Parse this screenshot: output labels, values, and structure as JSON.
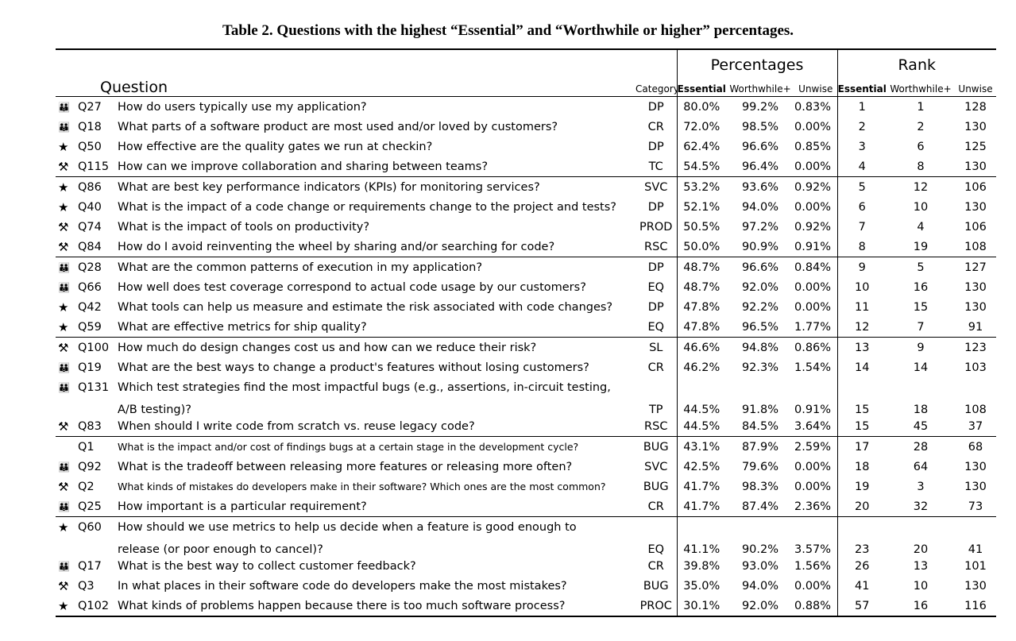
{
  "caption": "Table 2. Questions with the highest “Essential” and “Worthwhile or higher” percentages.",
  "headers": {
    "percentages": "Percentages",
    "rank": "Rank",
    "question": "Question",
    "category": "Category",
    "essential": "Essential",
    "worthwhile": "Worthwhile+",
    "unwise": "Unwise",
    "r_essential": "Essential",
    "r_worthwhile": "Worthwhile+",
    "r_unwise": "Unwise"
  },
  "icon_glyphs": {
    "people-icon": "👪",
    "star-icon": "★",
    "tools-icon": "⚒"
  },
  "rows": [
    {
      "icon": "people",
      "id": "Q27",
      "text": "How do users typically use my application?",
      "cat": "DP",
      "e": "80.0%",
      "w": "99.2%",
      "u": "0.83%",
      "re": "1",
      "rw": "1",
      "ru": "128"
    },
    {
      "icon": "people",
      "id": "Q18",
      "text": "What parts of a software product are most used and/or loved by customers?",
      "cat": "CR",
      "e": "72.0%",
      "w": "98.5%",
      "u": "0.00%",
      "re": "2",
      "rw": "2",
      "ru": "130"
    },
    {
      "icon": "star",
      "id": "Q50",
      "text": "How effective are the quality gates we run at checkin?",
      "cat": "DP",
      "e": "62.4%",
      "w": "96.6%",
      "u": "0.85%",
      "re": "3",
      "rw": "6",
      "ru": "125"
    },
    {
      "icon": "tools",
      "id": "Q115",
      "text": "How can we improve collaboration and sharing between teams?",
      "cat": "TC",
      "e": "54.5%",
      "w": "96.4%",
      "u": "0.00%",
      "re": "4",
      "rw": "8",
      "ru": "130"
    },
    {
      "icon": "star",
      "id": "Q86",
      "text": "What are best key performance indicators (KPIs) for monitoring services?",
      "cat": "SVC",
      "e": "53.2%",
      "w": "93.6%",
      "u": "0.92%",
      "re": "5",
      "rw": "12",
      "ru": "106",
      "sep": true
    },
    {
      "icon": "star",
      "id": "Q40",
      "text": "What is the impact of a code change or requirements change to the project and tests?",
      "cat": "DP",
      "e": "52.1%",
      "w": "94.0%",
      "u": "0.00%",
      "re": "6",
      "rw": "10",
      "ru": "130"
    },
    {
      "icon": "tools",
      "id": "Q74",
      "text": "What is the impact of tools on productivity?",
      "cat": "PROD",
      "e": "50.5%",
      "w": "97.2%",
      "u": "0.92%",
      "re": "7",
      "rw": "4",
      "ru": "106"
    },
    {
      "icon": "tools",
      "id": "Q84",
      "text": "How do I avoid reinventing the wheel by sharing and/or searching for code?",
      "cat": "RSC",
      "e": "50.0%",
      "w": "90.9%",
      "u": "0.91%",
      "re": "8",
      "rw": "19",
      "ru": "108"
    },
    {
      "icon": "people",
      "id": "Q28",
      "text": "What are the common patterns of execution in my application?",
      "cat": "DP",
      "e": "48.7%",
      "w": "96.6%",
      "u": "0.84%",
      "re": "9",
      "rw": "5",
      "ru": "127",
      "sep": true
    },
    {
      "icon": "people",
      "id": "Q66",
      "text": "How well does test coverage correspond to actual code usage by our customers?",
      "cat": "EQ",
      "e": "48.7%",
      "w": "92.0%",
      "u": "0.00%",
      "re": "10",
      "rw": "16",
      "ru": "130"
    },
    {
      "icon": "star",
      "id": "Q42",
      "text": "What tools can help us measure and estimate the risk associated with code changes?",
      "cat": "DP",
      "e": "47.8%",
      "w": "92.2%",
      "u": "0.00%",
      "re": "11",
      "rw": "15",
      "ru": "130"
    },
    {
      "icon": "star",
      "id": "Q59",
      "text": "What are effective metrics for ship quality?",
      "cat": "EQ",
      "e": "47.8%",
      "w": "96.5%",
      "u": "1.77%",
      "re": "12",
      "rw": "7",
      "ru": "91"
    },
    {
      "icon": "tools",
      "id": "Q100",
      "text": "How much do design changes cost us and how can we reduce their risk?",
      "cat": "SL",
      "e": "46.6%",
      "w": "94.8%",
      "u": "0.86%",
      "re": "13",
      "rw": "9",
      "ru": "123",
      "sep": true
    },
    {
      "icon": "people",
      "id": "Q19",
      "text": "What are the best ways to change a product's features without losing customers?",
      "cat": "CR",
      "e": "46.2%",
      "w": "92.3%",
      "u": "1.54%",
      "re": "14",
      "rw": "14",
      "ru": "103"
    },
    {
      "icon": "people",
      "id": "Q131",
      "text": "Which test strategies find the most impactful bugs (e.g., assertions, in-circuit testing,",
      "text2": "A/B testing)?",
      "cat": "TP",
      "e": "44.5%",
      "w": "91.8%",
      "u": "0.91%",
      "re": "15",
      "rw": "18",
      "ru": "108"
    },
    {
      "icon": "tools",
      "id": "Q83",
      "text": "When should I write code from scratch vs. reuse legacy code?",
      "cat": "RSC",
      "e": "44.5%",
      "w": "84.5%",
      "u": "3.64%",
      "re": "15",
      "rw": "45",
      "ru": "37"
    },
    {
      "icon": "",
      "id": "Q1",
      "text": "What is the impact and/or cost of findings bugs at a certain stage in the development cycle?",
      "small": true,
      "cat": "BUG",
      "e": "43.1%",
      "w": "87.9%",
      "u": "2.59%",
      "re": "17",
      "rw": "28",
      "ru": "68",
      "sep": true
    },
    {
      "icon": "people",
      "id": "Q92",
      "text": "What is the tradeoff between releasing more features or releasing more often?",
      "cat": "SVC",
      "e": "42.5%",
      "w": "79.6%",
      "u": "0.00%",
      "re": "18",
      "rw": "64",
      "ru": "130"
    },
    {
      "icon": "tools",
      "id": "Q2",
      "text": "What kinds of mistakes do developers make in their software? Which ones are the most common?",
      "small": true,
      "cat": "BUG",
      "e": "41.7%",
      "w": "98.3%",
      "u": "0.00%",
      "re": "19",
      "rw": "3",
      "ru": "130"
    },
    {
      "icon": "people",
      "id": "Q25",
      "text": "How important is a particular requirement?",
      "cat": "CR",
      "e": "41.7%",
      "w": "87.4%",
      "u": "2.36%",
      "re": "20",
      "rw": "32",
      "ru": "73"
    },
    {
      "icon": "star",
      "id": "Q60",
      "text": "How should we use metrics to help us decide when a feature is good enough to",
      "text2": "release (or poor enough to cancel)?",
      "cat": "EQ",
      "e": "41.1%",
      "w": "90.2%",
      "u": "3.57%",
      "re": "23",
      "rw": "20",
      "ru": "41",
      "sep": true
    },
    {
      "icon": "people",
      "id": "Q17",
      "text": "What is the best way to collect customer feedback?",
      "cat": "CR",
      "e": "39.8%",
      "w": "93.0%",
      "u": "1.56%",
      "re": "26",
      "rw": "13",
      "ru": "101"
    },
    {
      "icon": "tools",
      "id": "Q3",
      "text": "In what places in their software code do developers make the most mistakes?",
      "cat": "BUG",
      "e": "35.0%",
      "w": "94.0%",
      "u": "0.00%",
      "re": "41",
      "rw": "10",
      "ru": "130"
    },
    {
      "icon": "star",
      "id": "Q102",
      "text": "What kinds of problems happen because there is too much software process?",
      "cat": "PROC",
      "e": "30.1%",
      "w": "92.0%",
      "u": "0.88%",
      "re": "57",
      "rw": "16",
      "ru": "116"
    }
  ]
}
